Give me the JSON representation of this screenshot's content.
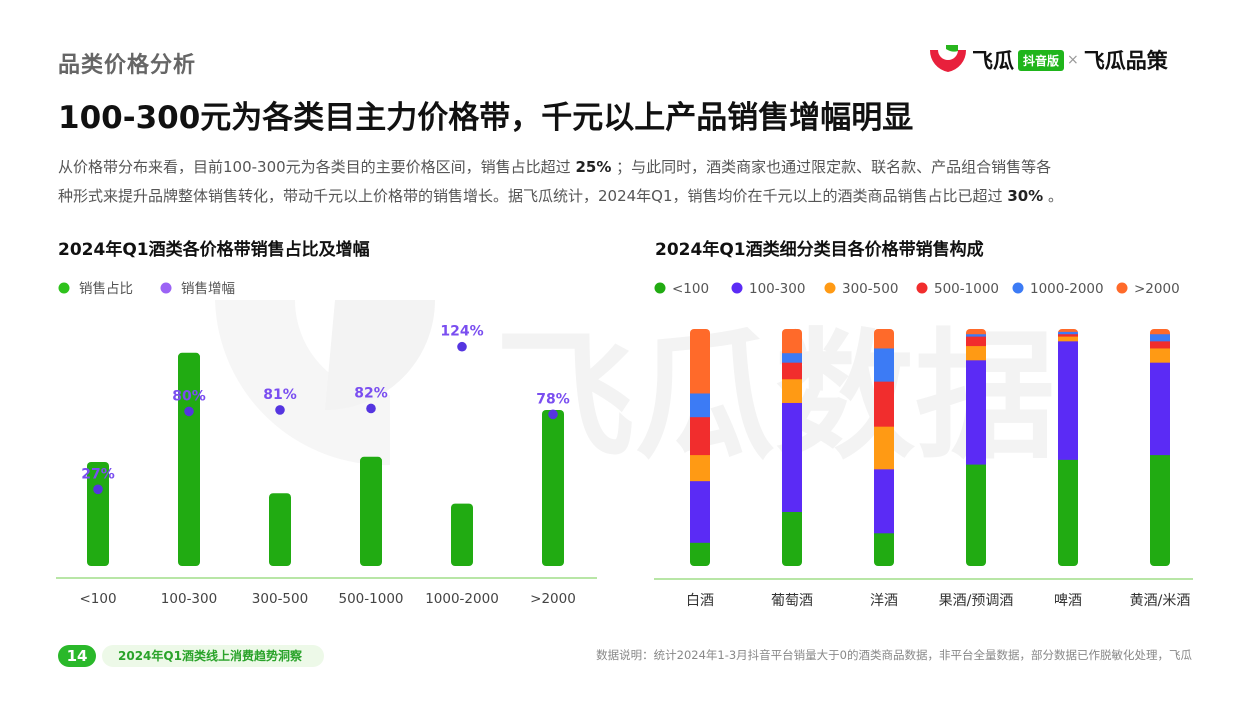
{
  "header": {
    "section_title": "品类价格分析",
    "brand_left": "飞瓜",
    "brand_badge": "抖音版",
    "brand_sep": "×",
    "brand_right": "飞瓜品策",
    "headline": "100-300元为各类目主力价格带，千元以上产品销售增幅明显"
  },
  "watermark": {
    "text": "飞瓜数据"
  },
  "description": {
    "line1_a": "从价格带分布来看，目前100-300元为各类目的主要价格区间，销售占比超过",
    "line1_b": "25%",
    "line1_c": "；与此同时，酒类商家也通过限定款、联名款、产品组合销售等各",
    "line2_a": "种形式来提升品牌整体销售转化，带动千元以上价格带的销售增长。据飞瓜统计，2024年Q1，销售均价在千元以上的酒类商品销售占比已超过",
    "line2_b": "30%",
    "line2_c": "。"
  },
  "colors": {
    "bar_green": "#21ab12",
    "bar_violet": "#5b2bf5",
    "point_violet": "#5535e0",
    "label_violet": "#7a4ef0",
    "axis_green": "#b8e6a6"
  },
  "chart_data": [
    {
      "type": "bar",
      "title": "2024年Q1酒类各价格带销售占比及增幅",
      "categories": [
        "<100",
        "100-300",
        "300-500",
        "500-1000",
        "1000-2000",
        ">2000"
      ],
      "series": [
        {
          "name": "销售占比",
          "kind": "bar",
          "color": "#21ab12",
          "values": [
            20,
            41,
            14,
            21,
            12,
            30
          ]
        },
        {
          "name": "销售增幅",
          "kind": "scatter",
          "color": "#5535e0",
          "values": [
            27,
            80,
            81,
            82,
            124,
            78
          ],
          "labels": [
            "27%",
            "80%",
            "81%",
            "82%",
            "124%",
            "78%"
          ]
        }
      ],
      "legend": "top-left"
    },
    {
      "type": "bar",
      "stacked": true,
      "normalized": true,
      "title": "2024年Q1酒类细分类目各价格带销售构成",
      "categories": [
        "白酒",
        "葡萄酒",
        "洋酒",
        "果酒/预调酒",
        "啤酒",
        "黄酒/米酒"
      ],
      "series": [
        {
          "name": "<100",
          "color": "#21ab12",
          "values": [
            10,
            23,
            14,
            43,
            45,
            47
          ]
        },
        {
          "name": "100-300",
          "color": "#5b2bf5",
          "values": [
            26,
            46,
            27,
            44,
            50,
            39
          ]
        },
        {
          "name": "300-500",
          "color": "#ff9a14",
          "values": [
            11,
            10,
            18,
            6,
            2,
            6
          ]
        },
        {
          "name": "500-1000",
          "color": "#f12d2d",
          "values": [
            16,
            7,
            19,
            4,
            1,
            3
          ]
        },
        {
          "name": "1000-2000",
          "color": "#3c7bf5",
          "values": [
            10,
            4,
            14,
            1,
            1,
            3
          ]
        },
        {
          "name": ">2000",
          "color": "#ff6a2a",
          "values": [
            27,
            10,
            8,
            2,
            1,
            2
          ]
        }
      ],
      "legend": "top-left"
    }
  ],
  "footer": {
    "page_number": "14",
    "report_title": "2024年Q1酒类线上消费趋势洞察",
    "note": "数据说明：统计2024年1-3月抖音平台销量大于0的酒类商品数据，非平台全量数据，部分数据已作脱敏化处理，飞瓜"
  }
}
